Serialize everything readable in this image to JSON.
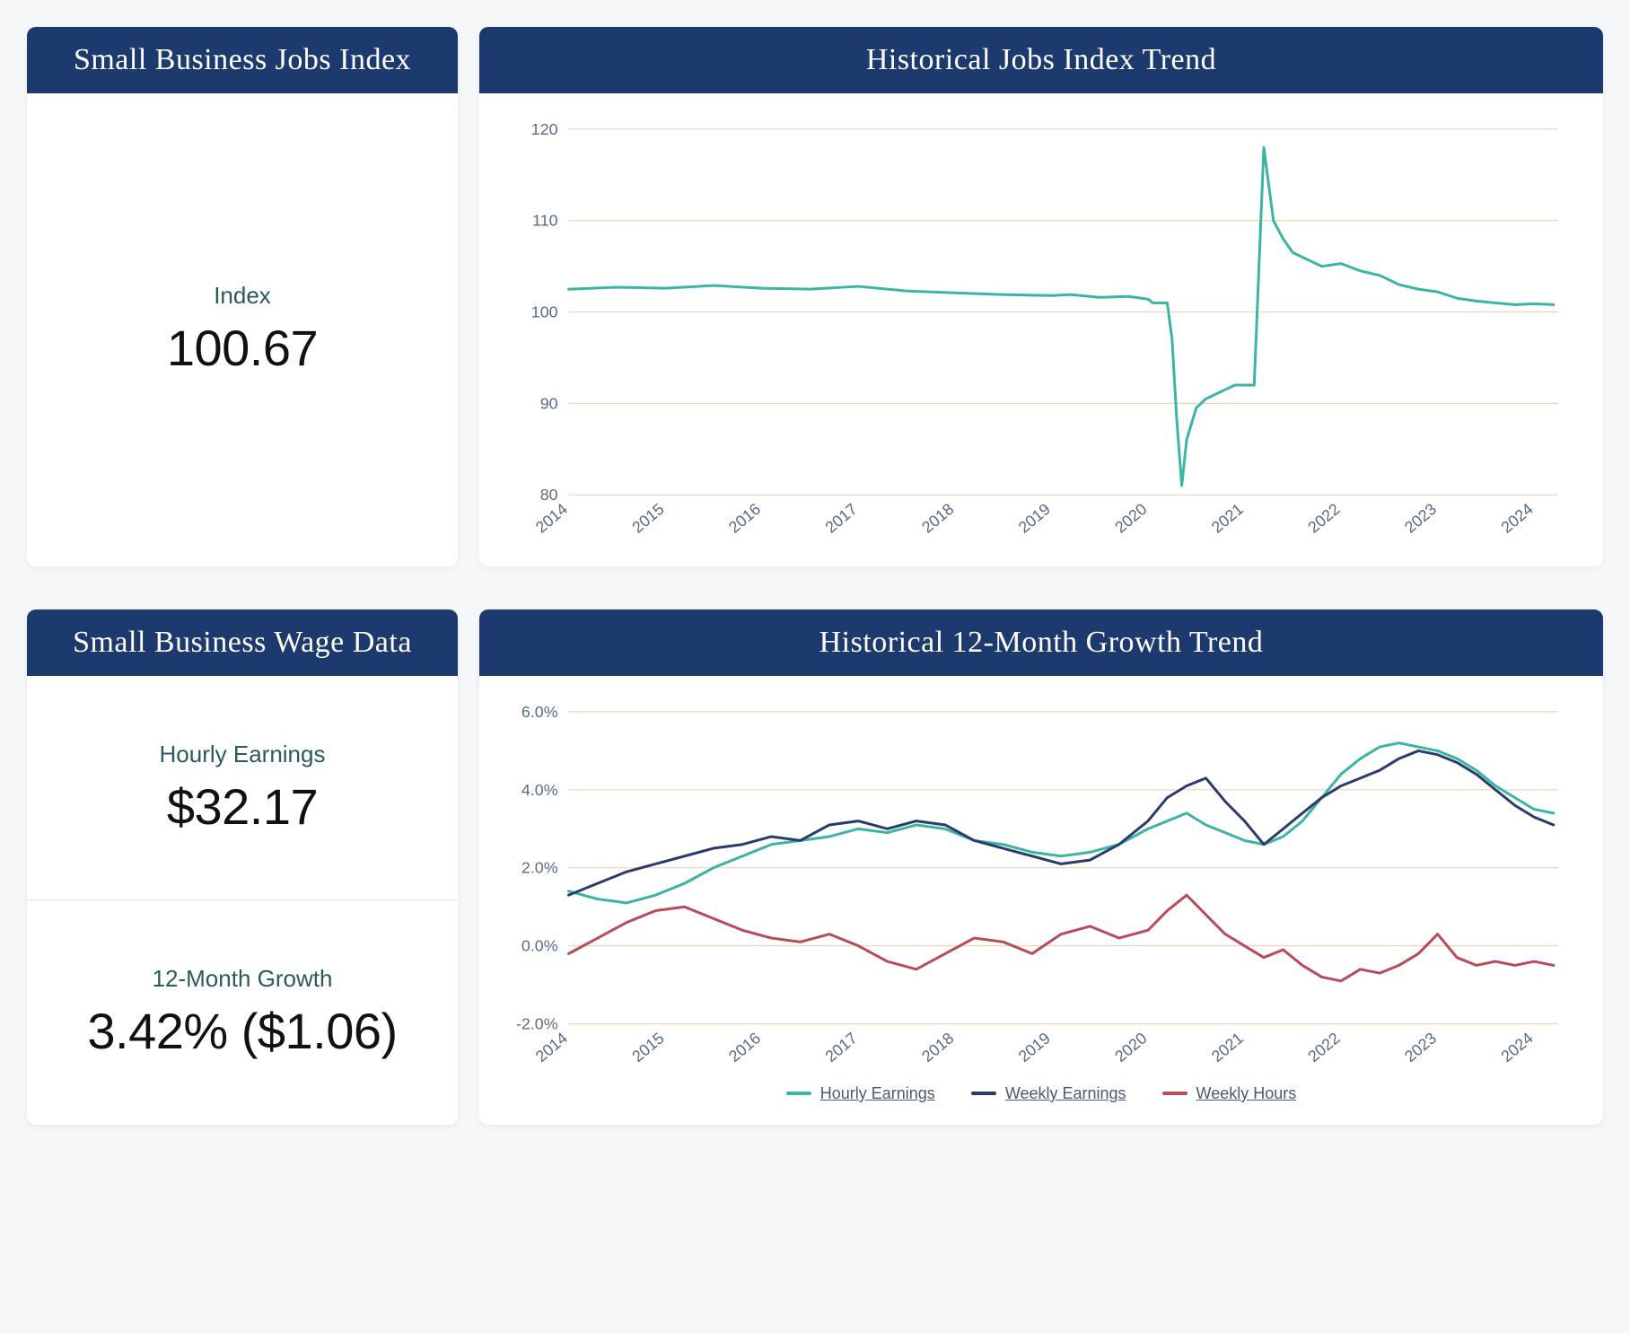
{
  "layout": {
    "page_bg": "#f6f7f9",
    "card_bg": "#ffffff",
    "header_bg": "#1d3a6e",
    "header_color": "#ffffff",
    "divider_color": "#e5e5e5"
  },
  "cards": {
    "jobs_index": {
      "title": "Small Business Jobs Index",
      "metrics": [
        {
          "label": "Index",
          "value": "100.67"
        }
      ]
    },
    "jobs_trend": {
      "title": "Historical Jobs Index Trend"
    },
    "wage_data": {
      "title": "Small Business Wage Data",
      "metrics": [
        {
          "label": "Hourly Earnings",
          "value": "$32.17"
        },
        {
          "label": "12-Month Growth",
          "value": "3.42% ($1.06)"
        }
      ]
    },
    "growth_trend": {
      "title": "Historical 12-Month Growth Trend"
    }
  },
  "chart_style": {
    "axis_color": "#5a6a85",
    "axis_fontsize": 18,
    "grid_color": "#f4c9a8",
    "grid_width": 1,
    "line_width": 3,
    "x_label_rotate": -40
  },
  "jobs_chart": {
    "type": "line",
    "ylim": [
      80,
      120
    ],
    "yticks": [
      80,
      90,
      100,
      110,
      120
    ],
    "x_years": [
      "2014",
      "2015",
      "2016",
      "2017",
      "2018",
      "2019",
      "2020",
      "2021",
      "2022",
      "2023",
      "2024"
    ],
    "series": [
      {
        "name": "Jobs Index",
        "color": "#3bb5a3",
        "points": [
          [
            0.0,
            102.5
          ],
          [
            0.5,
            102.7
          ],
          [
            1.0,
            102.6
          ],
          [
            1.5,
            102.9
          ],
          [
            2.0,
            102.6
          ],
          [
            2.5,
            102.5
          ],
          [
            3.0,
            102.8
          ],
          [
            3.5,
            102.3
          ],
          [
            4.0,
            102.1
          ],
          [
            4.5,
            101.9
          ],
          [
            5.0,
            101.8
          ],
          [
            5.2,
            101.9
          ],
          [
            5.5,
            101.6
          ],
          [
            5.8,
            101.7
          ],
          [
            6.0,
            101.4
          ],
          [
            6.05,
            101.0
          ],
          [
            6.1,
            101.0
          ],
          [
            6.2,
            101.0
          ],
          [
            6.25,
            97.0
          ],
          [
            6.3,
            88.0
          ],
          [
            6.35,
            81.0
          ],
          [
            6.4,
            86.0
          ],
          [
            6.5,
            89.5
          ],
          [
            6.6,
            90.5
          ],
          [
            6.7,
            91.0
          ],
          [
            6.8,
            91.5
          ],
          [
            6.9,
            92.0
          ],
          [
            7.0,
            92.0
          ],
          [
            7.1,
            92.0
          ],
          [
            7.15,
            105.0
          ],
          [
            7.2,
            118.0
          ],
          [
            7.3,
            110.0
          ],
          [
            7.4,
            108.0
          ],
          [
            7.5,
            106.5
          ],
          [
            7.6,
            106.0
          ],
          [
            7.8,
            105.0
          ],
          [
            8.0,
            105.3
          ],
          [
            8.2,
            104.5
          ],
          [
            8.4,
            104.0
          ],
          [
            8.6,
            103.0
          ],
          [
            8.8,
            102.5
          ],
          [
            9.0,
            102.2
          ],
          [
            9.2,
            101.5
          ],
          [
            9.4,
            101.2
          ],
          [
            9.6,
            101.0
          ],
          [
            9.8,
            100.8
          ],
          [
            10.0,
            100.9
          ],
          [
            10.2,
            100.8
          ]
        ]
      }
    ]
  },
  "growth_chart": {
    "type": "line",
    "ylim": [
      -2.0,
      6.0
    ],
    "yticks": [
      -2.0,
      0.0,
      2.0,
      4.0,
      6.0
    ],
    "ytick_format": "percent1",
    "x_years": [
      "2014",
      "2015",
      "2016",
      "2017",
      "2018",
      "2019",
      "2020",
      "2021",
      "2022",
      "2023",
      "2024"
    ],
    "legend": [
      {
        "label": "Hourly Earnings",
        "color": "#3bb5a3"
      },
      {
        "label": "Weekly Earnings",
        "color": "#2a3a6e"
      },
      {
        "label": "Weekly Hours",
        "color": "#b84a5a"
      }
    ],
    "series": [
      {
        "name": "Hourly Earnings",
        "color": "#3bb5a3",
        "points": [
          [
            0.0,
            1.4
          ],
          [
            0.3,
            1.2
          ],
          [
            0.6,
            1.1
          ],
          [
            0.9,
            1.3
          ],
          [
            1.2,
            1.6
          ],
          [
            1.5,
            2.0
          ],
          [
            1.8,
            2.3
          ],
          [
            2.1,
            2.6
          ],
          [
            2.4,
            2.7
          ],
          [
            2.7,
            2.8
          ],
          [
            3.0,
            3.0
          ],
          [
            3.3,
            2.9
          ],
          [
            3.6,
            3.1
          ],
          [
            3.9,
            3.0
          ],
          [
            4.2,
            2.7
          ],
          [
            4.5,
            2.6
          ],
          [
            4.8,
            2.4
          ],
          [
            5.1,
            2.3
          ],
          [
            5.4,
            2.4
          ],
          [
            5.7,
            2.6
          ],
          [
            6.0,
            3.0
          ],
          [
            6.2,
            3.2
          ],
          [
            6.4,
            3.4
          ],
          [
            6.6,
            3.1
          ],
          [
            6.8,
            2.9
          ],
          [
            7.0,
            2.7
          ],
          [
            7.2,
            2.6
          ],
          [
            7.4,
            2.8
          ],
          [
            7.6,
            3.2
          ],
          [
            7.8,
            3.8
          ],
          [
            8.0,
            4.4
          ],
          [
            8.2,
            4.8
          ],
          [
            8.4,
            5.1
          ],
          [
            8.6,
            5.2
          ],
          [
            8.8,
            5.1
          ],
          [
            9.0,
            5.0
          ],
          [
            9.2,
            4.8
          ],
          [
            9.4,
            4.5
          ],
          [
            9.6,
            4.1
          ],
          [
            9.8,
            3.8
          ],
          [
            10.0,
            3.5
          ],
          [
            10.2,
            3.4
          ]
        ]
      },
      {
        "name": "Weekly Earnings",
        "color": "#2a3a6e",
        "points": [
          [
            0.0,
            1.3
          ],
          [
            0.3,
            1.6
          ],
          [
            0.6,
            1.9
          ],
          [
            0.9,
            2.1
          ],
          [
            1.2,
            2.3
          ],
          [
            1.5,
            2.5
          ],
          [
            1.8,
            2.6
          ],
          [
            2.1,
            2.8
          ],
          [
            2.4,
            2.7
          ],
          [
            2.7,
            3.1
          ],
          [
            3.0,
            3.2
          ],
          [
            3.3,
            3.0
          ],
          [
            3.6,
            3.2
          ],
          [
            3.9,
            3.1
          ],
          [
            4.2,
            2.7
          ],
          [
            4.5,
            2.5
          ],
          [
            4.8,
            2.3
          ],
          [
            5.1,
            2.1
          ],
          [
            5.4,
            2.2
          ],
          [
            5.7,
            2.6
          ],
          [
            6.0,
            3.2
          ],
          [
            6.2,
            3.8
          ],
          [
            6.4,
            4.1
          ],
          [
            6.6,
            4.3
          ],
          [
            6.8,
            3.7
          ],
          [
            7.0,
            3.2
          ],
          [
            7.2,
            2.6
          ],
          [
            7.4,
            3.0
          ],
          [
            7.6,
            3.4
          ],
          [
            7.8,
            3.8
          ],
          [
            8.0,
            4.1
          ],
          [
            8.2,
            4.3
          ],
          [
            8.4,
            4.5
          ],
          [
            8.6,
            4.8
          ],
          [
            8.8,
            5.0
          ],
          [
            9.0,
            4.9
          ],
          [
            9.2,
            4.7
          ],
          [
            9.4,
            4.4
          ],
          [
            9.6,
            4.0
          ],
          [
            9.8,
            3.6
          ],
          [
            10.0,
            3.3
          ],
          [
            10.2,
            3.1
          ]
        ]
      },
      {
        "name": "Weekly Hours",
        "color": "#b84a5a",
        "points": [
          [
            0.0,
            -0.2
          ],
          [
            0.3,
            0.2
          ],
          [
            0.6,
            0.6
          ],
          [
            0.9,
            0.9
          ],
          [
            1.2,
            1.0
          ],
          [
            1.5,
            0.7
          ],
          [
            1.8,
            0.4
          ],
          [
            2.1,
            0.2
          ],
          [
            2.4,
            0.1
          ],
          [
            2.7,
            0.3
          ],
          [
            3.0,
            0.0
          ],
          [
            3.3,
            -0.4
          ],
          [
            3.6,
            -0.6
          ],
          [
            3.9,
            -0.2
          ],
          [
            4.2,
            0.2
          ],
          [
            4.5,
            0.1
          ],
          [
            4.8,
            -0.2
          ],
          [
            5.1,
            0.3
          ],
          [
            5.4,
            0.5
          ],
          [
            5.7,
            0.2
          ],
          [
            6.0,
            0.4
          ],
          [
            6.2,
            0.9
          ],
          [
            6.4,
            1.3
          ],
          [
            6.6,
            0.8
          ],
          [
            6.8,
            0.3
          ],
          [
            7.0,
            0.0
          ],
          [
            7.2,
            -0.3
          ],
          [
            7.4,
            -0.1
          ],
          [
            7.6,
            -0.5
          ],
          [
            7.8,
            -0.8
          ],
          [
            8.0,
            -0.9
          ],
          [
            8.2,
            -0.6
          ],
          [
            8.4,
            -0.7
          ],
          [
            8.6,
            -0.5
          ],
          [
            8.8,
            -0.2
          ],
          [
            9.0,
            0.3
          ],
          [
            9.2,
            -0.3
          ],
          [
            9.4,
            -0.5
          ],
          [
            9.6,
            -0.4
          ],
          [
            9.8,
            -0.5
          ],
          [
            10.0,
            -0.4
          ],
          [
            10.2,
            -0.5
          ]
        ]
      }
    ]
  }
}
